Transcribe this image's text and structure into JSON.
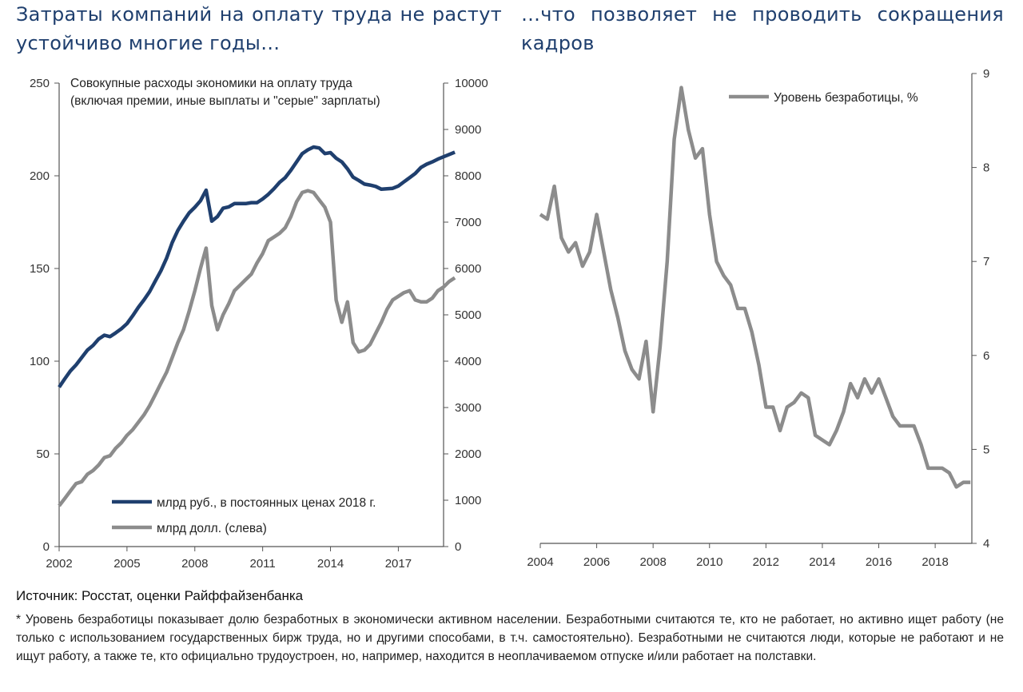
{
  "headline_left": "Затраты компаний на оплату труда не растут устойчиво многие годы…",
  "headline_right": "…что позволяет не проводить сокращения кадров",
  "source": "Источник: Росстат, оценки Райффайзенбанка",
  "footnote": "* Уровень безработицы показывает долю безработных в экономически активном населении. Безработными считаются те, кто не работает, но активно ищет работу (не только с использованием государственных бирж труда, но и другими способами, в т.ч. самостоятельно). Безработными не считаются люди, которые не работают и не ищут работу, а также те, кто официально трудоустроен, но, например, находится в неоплачиваемом отпуске и/или работает на полставки.",
  "colors": {
    "navy": "#1f3f6e",
    "gray": "#8c8c8c",
    "headline": "#1f3f6e"
  },
  "chart_data": [
    {
      "type": "line",
      "annotation_line1": "Совокупные расходы экономики на оплату труда",
      "annotation_line2": "(включая премии, иные выплаты и \"серые\" зарплаты)",
      "x_ticks": [
        "2002",
        "2005",
        "2008",
        "2011",
        "2014",
        "2017"
      ],
      "y_left_ticks": [
        "0",
        "50",
        "100",
        "150",
        "200",
        "250"
      ],
      "y_right_ticks": [
        "0",
        "1000",
        "2000",
        "3000",
        "4000",
        "5000",
        "6000",
        "7000",
        "8000",
        "9000",
        "10000"
      ],
      "ylim_left": [
        0,
        250
      ],
      "ylim_right": [
        0,
        10000
      ],
      "xlim": [
        2002,
        2019
      ],
      "legend_placement": "bottom-right",
      "series": [
        {
          "name": "млрд руб., в постоянных ценах 2018 г.",
          "axis": "right",
          "color": "#1f3f6e",
          "points": [
            [
              2002.0,
              3440
            ],
            [
              2002.25,
              3620
            ],
            [
              2002.5,
              3790
            ],
            [
              2002.75,
              3920
            ],
            [
              2003.0,
              4080
            ],
            [
              2003.25,
              4240
            ],
            [
              2003.5,
              4340
            ],
            [
              2003.75,
              4480
            ],
            [
              2004.0,
              4560
            ],
            [
              2004.25,
              4530
            ],
            [
              2004.5,
              4610
            ],
            [
              2004.75,
              4700
            ],
            [
              2005.0,
              4810
            ],
            [
              2005.25,
              4980
            ],
            [
              2005.5,
              5160
            ],
            [
              2005.75,
              5320
            ],
            [
              2006.0,
              5500
            ],
            [
              2006.25,
              5730
            ],
            [
              2006.5,
              5950
            ],
            [
              2006.75,
              6220
            ],
            [
              2007.0,
              6560
            ],
            [
              2007.25,
              6820
            ],
            [
              2007.5,
              7020
            ],
            [
              2007.75,
              7200
            ],
            [
              2008.0,
              7320
            ],
            [
              2008.25,
              7460
            ],
            [
              2008.5,
              7690
            ],
            [
              2008.75,
              7020
            ],
            [
              2009.0,
              7120
            ],
            [
              2009.25,
              7300
            ],
            [
              2009.5,
              7330
            ],
            [
              2009.75,
              7400
            ],
            [
              2010.0,
              7400
            ],
            [
              2010.25,
              7400
            ],
            [
              2010.5,
              7420
            ],
            [
              2010.75,
              7420
            ],
            [
              2011.0,
              7500
            ],
            [
              2011.25,
              7600
            ],
            [
              2011.5,
              7720
            ],
            [
              2011.75,
              7860
            ],
            [
              2012.0,
              7960
            ],
            [
              2012.25,
              8120
            ],
            [
              2012.5,
              8300
            ],
            [
              2012.75,
              8480
            ],
            [
              2013.0,
              8560
            ],
            [
              2013.25,
              8620
            ],
            [
              2013.5,
              8600
            ],
            [
              2013.75,
              8480
            ],
            [
              2014.0,
              8500
            ],
            [
              2014.25,
              8380
            ],
            [
              2014.5,
              8300
            ],
            [
              2014.75,
              8150
            ],
            [
              2015.0,
              7970
            ],
            [
              2015.25,
              7900
            ],
            [
              2015.5,
              7820
            ],
            [
              2015.75,
              7800
            ],
            [
              2016.0,
              7770
            ],
            [
              2016.25,
              7710
            ],
            [
              2016.5,
              7720
            ],
            [
              2016.75,
              7730
            ],
            [
              2017.0,
              7780
            ],
            [
              2017.25,
              7870
            ],
            [
              2017.5,
              7960
            ],
            [
              2017.75,
              8050
            ],
            [
              2018.0,
              8180
            ],
            [
              2018.25,
              8250
            ],
            [
              2018.5,
              8300
            ],
            [
              2018.75,
              8360
            ],
            [
              2019.0,
              8410
            ],
            [
              2019.25,
              8460
            ],
            [
              2019.5,
              8510
            ]
          ]
        },
        {
          "name": "млрд долл. (слева)",
          "axis": "left",
          "color": "#8c8c8c",
          "points": [
            [
              2002.0,
              22
            ],
            [
              2002.25,
              26
            ],
            [
              2002.5,
              30
            ],
            [
              2002.75,
              34
            ],
            [
              2003.0,
              35
            ],
            [
              2003.25,
              39
            ],
            [
              2003.5,
              41
            ],
            [
              2003.75,
              44
            ],
            [
              2004.0,
              48
            ],
            [
              2004.25,
              49
            ],
            [
              2004.5,
              53
            ],
            [
              2004.75,
              56
            ],
            [
              2005.0,
              60
            ],
            [
              2005.25,
              63
            ],
            [
              2005.5,
              67
            ],
            [
              2005.75,
              71
            ],
            [
              2006.0,
              76
            ],
            [
              2006.25,
              82
            ],
            [
              2006.5,
              88
            ],
            [
              2006.75,
              94
            ],
            [
              2007.0,
              102
            ],
            [
              2007.25,
              110
            ],
            [
              2007.5,
              117
            ],
            [
              2007.75,
              127
            ],
            [
              2008.0,
              138
            ],
            [
              2008.25,
              150
            ],
            [
              2008.5,
              161
            ],
            [
              2008.75,
              130
            ],
            [
              2009.0,
              117
            ],
            [
              2009.25,
              125
            ],
            [
              2009.5,
              131
            ],
            [
              2009.75,
              138
            ],
            [
              2010.0,
              141
            ],
            [
              2010.25,
              144
            ],
            [
              2010.5,
              147
            ],
            [
              2010.75,
              153
            ],
            [
              2011.0,
              158
            ],
            [
              2011.25,
              165
            ],
            [
              2011.5,
              167
            ],
            [
              2011.75,
              169
            ],
            [
              2012.0,
              172
            ],
            [
              2012.25,
              178
            ],
            [
              2012.5,
              186
            ],
            [
              2012.75,
              191
            ],
            [
              2013.0,
              192
            ],
            [
              2013.25,
              191
            ],
            [
              2013.5,
              187
            ],
            [
              2013.75,
              183
            ],
            [
              2014.0,
              175
            ],
            [
              2014.25,
              133
            ],
            [
              2014.5,
              121
            ],
            [
              2014.75,
              132
            ],
            [
              2015.0,
              110
            ],
            [
              2015.25,
              105
            ],
            [
              2015.5,
              106
            ],
            [
              2015.75,
              109
            ],
            [
              2016.0,
              115
            ],
            [
              2016.25,
              121
            ],
            [
              2016.5,
              128
            ],
            [
              2016.75,
              133
            ],
            [
              2017.0,
              135
            ],
            [
              2017.25,
              137
            ],
            [
              2017.5,
              138
            ],
            [
              2017.75,
              133
            ],
            [
              2018.0,
              132
            ],
            [
              2018.25,
              132
            ],
            [
              2018.5,
              134
            ],
            [
              2018.75,
              138
            ],
            [
              2019.0,
              140
            ],
            [
              2019.25,
              143
            ],
            [
              2019.5,
              145
            ]
          ]
        }
      ]
    },
    {
      "type": "line",
      "x_ticks": [
        "2004",
        "2006",
        "2008",
        "2010",
        "2012",
        "2014",
        "2016",
        "2018"
      ],
      "y_right_ticks": [
        "4",
        "5",
        "6",
        "7",
        "8",
        "9"
      ],
      "ylim_right": [
        4,
        9
      ],
      "xlim": [
        2004,
        2019.3
      ],
      "legend_placement": "top-right",
      "series": [
        {
          "name": "Уровень безработицы, %",
          "axis": "right",
          "color": "#8c8c8c",
          "points": [
            [
              2004.0,
              7.5
            ],
            [
              2004.25,
              7.45
            ],
            [
              2004.5,
              7.8
            ],
            [
              2004.75,
              7.25
            ],
            [
              2005.0,
              7.1
            ],
            [
              2005.25,
              7.2
            ],
            [
              2005.5,
              6.95
            ],
            [
              2005.75,
              7.1
            ],
            [
              2006.0,
              7.5
            ],
            [
              2006.25,
              7.1
            ],
            [
              2006.5,
              6.7
            ],
            [
              2006.75,
              6.4
            ],
            [
              2007.0,
              6.05
            ],
            [
              2007.25,
              5.85
            ],
            [
              2007.5,
              5.75
            ],
            [
              2007.75,
              6.15
            ],
            [
              2008.0,
              5.4
            ],
            [
              2008.25,
              6.1
            ],
            [
              2008.5,
              7.0
            ],
            [
              2008.75,
              8.3
            ],
            [
              2009.0,
              8.85
            ],
            [
              2009.25,
              8.4
            ],
            [
              2009.5,
              8.1
            ],
            [
              2009.75,
              8.2
            ],
            [
              2010.0,
              7.5
            ],
            [
              2010.25,
              7.0
            ],
            [
              2010.5,
              6.85
            ],
            [
              2010.75,
              6.75
            ],
            [
              2011.0,
              6.5
            ],
            [
              2011.25,
              6.5
            ],
            [
              2011.5,
              6.25
            ],
            [
              2011.75,
              5.9
            ],
            [
              2012.0,
              5.45
            ],
            [
              2012.25,
              5.45
            ],
            [
              2012.5,
              5.2
            ],
            [
              2012.75,
              5.45
            ],
            [
              2013.0,
              5.5
            ],
            [
              2013.25,
              5.6
            ],
            [
              2013.5,
              5.55
            ],
            [
              2013.75,
              5.15
            ],
            [
              2014.0,
              5.1
            ],
            [
              2014.25,
              5.05
            ],
            [
              2014.5,
              5.2
            ],
            [
              2014.75,
              5.4
            ],
            [
              2015.0,
              5.7
            ],
            [
              2015.25,
              5.55
            ],
            [
              2015.5,
              5.75
            ],
            [
              2015.75,
              5.6
            ],
            [
              2016.0,
              5.75
            ],
            [
              2016.25,
              5.55
            ],
            [
              2016.5,
              5.35
            ],
            [
              2016.75,
              5.25
            ],
            [
              2017.0,
              5.25
            ],
            [
              2017.25,
              5.25
            ],
            [
              2017.5,
              5.05
            ],
            [
              2017.75,
              4.8
            ],
            [
              2018.0,
              4.8
            ],
            [
              2018.25,
              4.8
            ],
            [
              2018.5,
              4.75
            ],
            [
              2018.75,
              4.6
            ],
            [
              2019.0,
              4.65
            ],
            [
              2019.25,
              4.65
            ]
          ]
        }
      ]
    }
  ]
}
